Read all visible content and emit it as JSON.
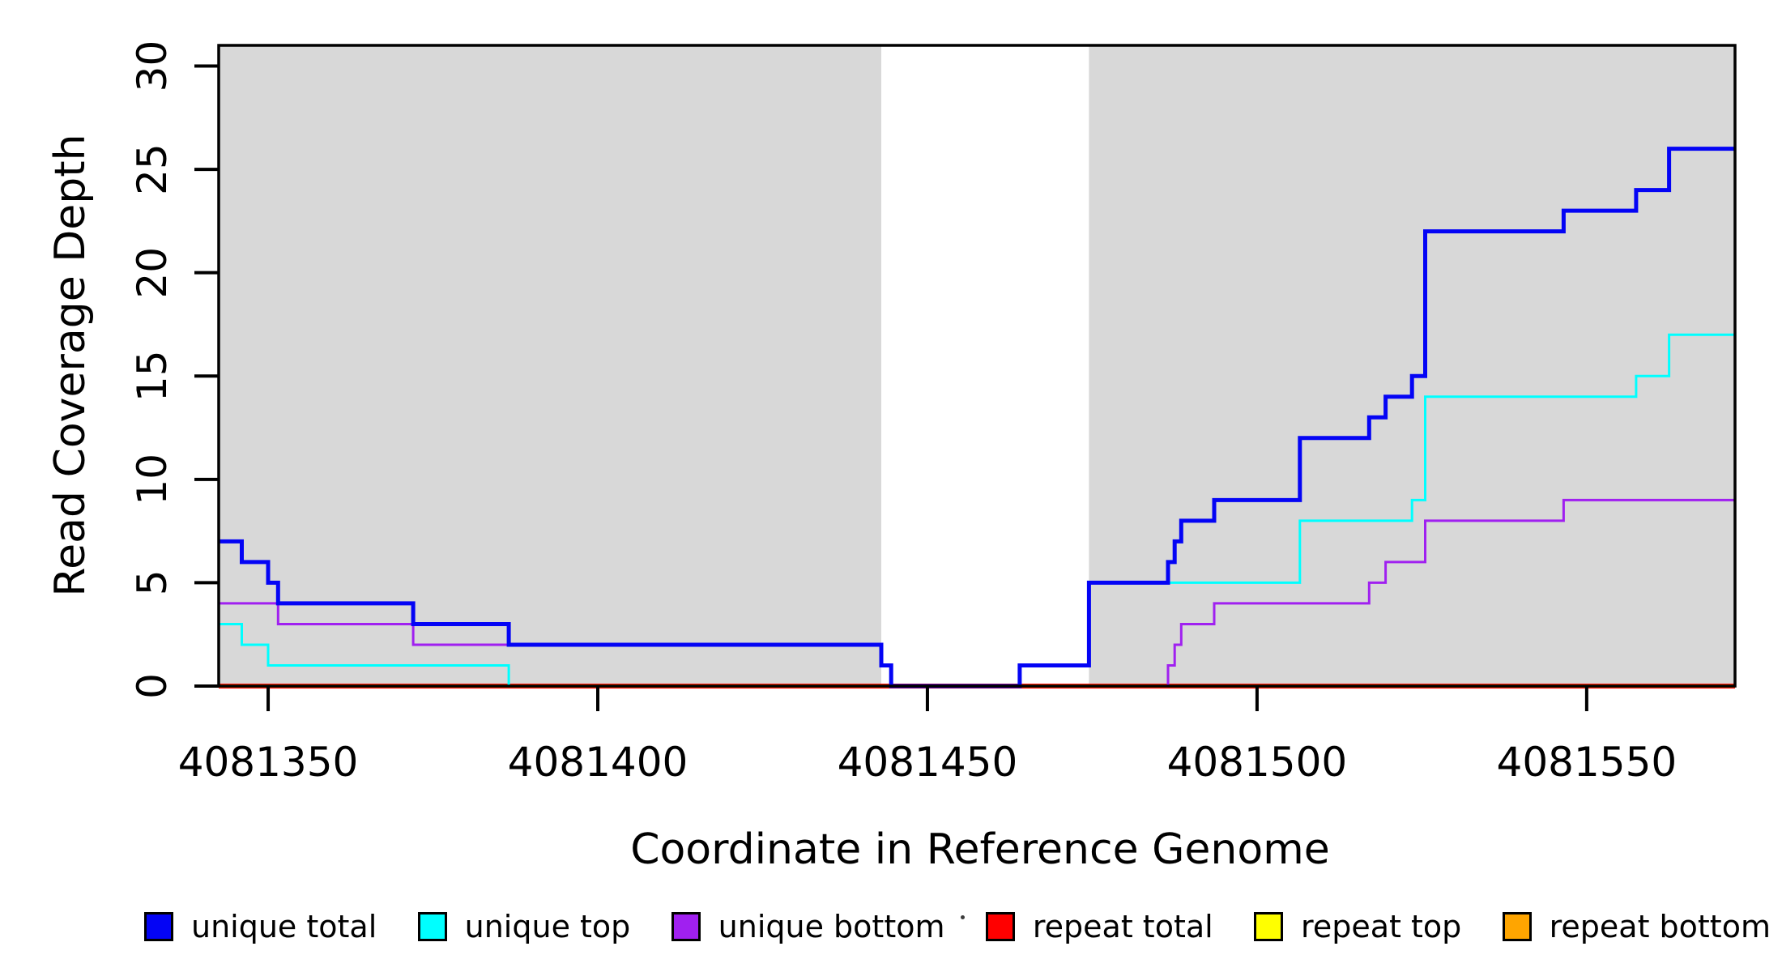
{
  "chart_data": {
    "type": "line",
    "line_style": "step-after",
    "title": "",
    "xlabel": "Coordinate in Reference Genome",
    "ylabel": "Read Coverage Depth",
    "xlim": [
      4081342.5,
      4081572.5
    ],
    "ylim": [
      0,
      31
    ],
    "x_ticks": [
      4081350,
      4081400,
      4081450,
      4081500,
      4081550
    ],
    "y_ticks": [
      0,
      5,
      10,
      15,
      20,
      25,
      30
    ],
    "grid": false,
    "plot_background": "#ffffff",
    "box_color": "#000000",
    "shaded_regions": [
      {
        "name": "shaded-region-left",
        "x0": 4081342.5,
        "x1": 4081443.0,
        "color": "#d8d8d8"
      },
      {
        "name": "shaded-region-right",
        "x0": 4081474.5,
        "x1": 4081572.5,
        "color": "#d8d8d8"
      }
    ],
    "series": [
      {
        "name": "repeat total",
        "color": "#ff0000",
        "stroke_width": 6,
        "steps": [
          [
            4081342.5,
            0
          ]
        ]
      },
      {
        "name": "repeat top",
        "color": "#ffff00",
        "stroke_width": 3.5,
        "steps": [
          [
            4081342.5,
            0
          ]
        ]
      },
      {
        "name": "repeat bottom",
        "color": "#ffa500",
        "stroke_width": 3.5,
        "steps": [
          [
            4081342.5,
            0
          ]
        ]
      },
      {
        "name": "unique bottom",
        "color": "#a020f0",
        "stroke_width": 3,
        "steps": [
          [
            4081342.5,
            4
          ],
          [
            4081351.5,
            3
          ],
          [
            4081372,
            2
          ],
          [
            4081443,
            1
          ],
          [
            4081444.5,
            0
          ],
          [
            4081486.5,
            1
          ],
          [
            4081487.5,
            2
          ],
          [
            4081488.5,
            3
          ],
          [
            4081493.5,
            4
          ],
          [
            4081517,
            5
          ],
          [
            4081519.5,
            6
          ],
          [
            4081525.5,
            8
          ],
          [
            4081546.5,
            9
          ]
        ]
      },
      {
        "name": "unique top",
        "color": "#00ffff",
        "stroke_width": 3,
        "steps": [
          [
            4081342.5,
            3
          ],
          [
            4081346,
            2
          ],
          [
            4081350,
            1
          ],
          [
            4081386.5,
            0
          ],
          [
            4081464,
            1
          ],
          [
            4081474.5,
            5
          ],
          [
            4081506.5,
            8
          ],
          [
            4081523.5,
            9
          ],
          [
            4081525.5,
            14
          ],
          [
            4081557.5,
            15
          ],
          [
            4081562.5,
            17
          ]
        ]
      },
      {
        "name": "unique total",
        "color": "#0404f5",
        "stroke_width": 5,
        "steps": [
          [
            4081342.5,
            7
          ],
          [
            4081346,
            6
          ],
          [
            4081350,
            5
          ],
          [
            4081351.5,
            4
          ],
          [
            4081372,
            3
          ],
          [
            4081386.5,
            2
          ],
          [
            4081443,
            1
          ],
          [
            4081444.5,
            0
          ],
          [
            4081464,
            1
          ],
          [
            4081474.5,
            5
          ],
          [
            4081486.5,
            6
          ],
          [
            4081487.5,
            7
          ],
          [
            4081488.5,
            8
          ],
          [
            4081493.5,
            9
          ],
          [
            4081506.5,
            12
          ],
          [
            4081517,
            13
          ],
          [
            4081519.5,
            14
          ],
          [
            4081523.5,
            15
          ],
          [
            4081525.5,
            22
          ],
          [
            4081546.5,
            23
          ],
          [
            4081557.5,
            24
          ],
          [
            4081562.5,
            26
          ]
        ]
      }
    ],
    "legend": {
      "position": "bottom",
      "items": [
        {
          "label": "unique total",
          "color": "#0404f5"
        },
        {
          "label": "unique top",
          "color": "#00ffff"
        },
        {
          "label": "unique bottom",
          "color": "#a020f0"
        },
        {
          "label": "repeat total",
          "color": "#ff0000"
        },
        {
          "label": "repeat top",
          "color": "#ffff00"
        },
        {
          "label": "repeat bottom",
          "color": "#ffa500"
        }
      ]
    }
  }
}
